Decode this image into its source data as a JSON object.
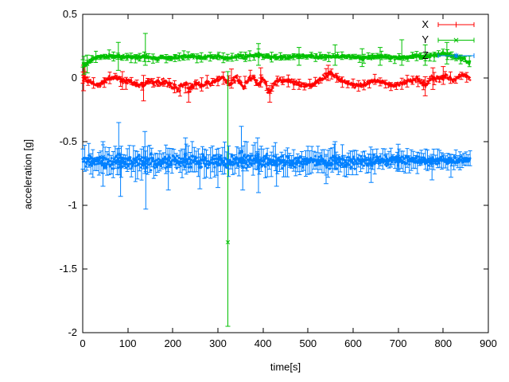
{
  "canvas": {
    "background": "#ffffff",
    "axis_color": "#000000",
    "text_color": "#000000"
  },
  "chart_data": {
    "type": "scatter",
    "style": "points-with-errorbars",
    "title": "",
    "xlabel": "time[s]",
    "ylabel": "acceleration [g]",
    "xlim": [
      0,
      900
    ],
    "ylim": [
      -2,
      0.5
    ],
    "t_range": [
      0,
      860
    ],
    "grid": false,
    "legend": {
      "position": "top-right-inside",
      "border": false,
      "entries": [
        "X",
        "Y",
        "Z"
      ]
    },
    "xticks": [
      {
        "v": 0,
        "label": "0"
      },
      {
        "v": 100,
        "label": "100"
      },
      {
        "v": 200,
        "label": "200"
      },
      {
        "v": 300,
        "label": "300"
      },
      {
        "v": 400,
        "label": "400"
      },
      {
        "v": 500,
        "label": "500"
      },
      {
        "v": 600,
        "label": "600"
      },
      {
        "v": 700,
        "label": "700"
      },
      {
        "v": 800,
        "label": "800"
      },
      {
        "v": 900,
        "label": "900"
      }
    ],
    "yticks": [
      {
        "v": 0.5,
        "label": "0.5"
      },
      {
        "v": 0,
        "label": "0"
      },
      {
        "v": -0.5,
        "label": "-0.5"
      },
      {
        "v": -1,
        "label": "-1"
      },
      {
        "v": -1.5,
        "label": "-1.5"
      },
      {
        "v": -2,
        "label": "-2"
      }
    ],
    "series": [
      {
        "name": "X",
        "color": "#ff0000",
        "marker": "+",
        "ebar_every": 16,
        "mean": [
          [
            0,
            0.0
          ],
          [
            8,
            -0.01
          ],
          [
            16,
            -0.03
          ],
          [
            26,
            -0.05
          ],
          [
            36,
            -0.055
          ],
          [
            46,
            -0.03
          ],
          [
            56,
            -0.01
          ],
          [
            66,
            0.0
          ],
          [
            76,
            0.005
          ],
          [
            86,
            -0.015
          ],
          [
            96,
            -0.03
          ],
          [
            106,
            -0.025
          ],
          [
            116,
            -0.045
          ],
          [
            126,
            -0.06
          ],
          [
            134,
            -0.05
          ],
          [
            142,
            -0.025
          ],
          [
            152,
            -0.02
          ],
          [
            162,
            -0.04
          ],
          [
            172,
            -0.03
          ],
          [
            182,
            -0.025
          ],
          [
            192,
            -0.05
          ],
          [
            202,
            -0.075
          ],
          [
            212,
            -0.09
          ],
          [
            222,
            -0.06
          ],
          [
            230,
            -0.05
          ],
          [
            236,
            -0.105
          ],
          [
            244,
            -0.06
          ],
          [
            252,
            -0.045
          ],
          [
            260,
            -0.055
          ],
          [
            268,
            -0.05
          ],
          [
            276,
            -0.035
          ],
          [
            284,
            -0.045
          ],
          [
            294,
            -0.025
          ],
          [
            302,
            -0.01
          ],
          [
            310,
            0.0
          ],
          [
            318,
            -0.03
          ],
          [
            326,
            -0.05
          ],
          [
            334,
            -0.015
          ],
          [
            342,
            0.005
          ],
          [
            350,
            -0.04
          ],
          [
            356,
            -0.075
          ],
          [
            364,
            -0.03
          ],
          [
            372,
            0.005
          ],
          [
            380,
            -0.005
          ],
          [
            386,
            -0.04
          ],
          [
            392,
            -0.06
          ],
          [
            398,
            0.0
          ],
          [
            404,
            -0.02
          ],
          [
            410,
            -0.095
          ],
          [
            416,
            -0.115
          ],
          [
            424,
            -0.05
          ],
          [
            432,
            -0.02
          ],
          [
            442,
            -0.02
          ],
          [
            452,
            -0.03
          ],
          [
            462,
            -0.02
          ],
          [
            472,
            -0.04
          ],
          [
            482,
            -0.05
          ],
          [
            492,
            -0.06
          ],
          [
            502,
            -0.06
          ],
          [
            512,
            -0.05
          ],
          [
            522,
            -0.03
          ],
          [
            532,
            0.0
          ],
          [
            542,
            0.025
          ],
          [
            550,
            0.04
          ],
          [
            558,
            0.025
          ],
          [
            566,
            0.0
          ],
          [
            576,
            -0.025
          ],
          [
            586,
            -0.04
          ],
          [
            596,
            -0.05
          ],
          [
            606,
            -0.06
          ],
          [
            616,
            -0.06
          ],
          [
            626,
            -0.05
          ],
          [
            636,
            -0.03
          ],
          [
            646,
            -0.02
          ],
          [
            656,
            -0.02
          ],
          [
            666,
            -0.03
          ],
          [
            676,
            -0.05
          ],
          [
            686,
            -0.06
          ],
          [
            696,
            -0.055
          ],
          [
            706,
            -0.05
          ],
          [
            716,
            -0.03
          ],
          [
            726,
            -0.02
          ],
          [
            736,
            -0.015
          ],
          [
            746,
            -0.02
          ],
          [
            754,
            -0.04
          ],
          [
            762,
            -0.06
          ],
          [
            768,
            -0.02
          ],
          [
            774,
            0.005
          ],
          [
            782,
            -0.005
          ],
          [
            790,
            -0.01
          ],
          [
            798,
            0.005
          ],
          [
            806,
            0.015
          ],
          [
            814,
            0.0
          ],
          [
            822,
            -0.015
          ],
          [
            830,
            -0.005
          ],
          [
            838,
            0.015
          ],
          [
            846,
            0.025
          ],
          [
            852,
            0.015
          ],
          [
            860,
            -0.005
          ]
        ],
        "spread": [
          [
            0,
            0.018
          ],
          [
            100,
            0.02
          ],
          [
            200,
            0.024
          ],
          [
            300,
            0.02
          ],
          [
            400,
            0.022
          ],
          [
            500,
            0.018
          ],
          [
            600,
            0.018
          ],
          [
            700,
            0.018
          ],
          [
            780,
            0.022
          ],
          [
            860,
            0.015
          ]
        ],
        "outliers": [
          {
            "t": 2,
            "y": 0.02,
            "lo": -0.1,
            "hi": 0.1
          },
          {
            "t": 5,
            "y": 0.05,
            "lo": -0.03,
            "hi": 0.12
          },
          {
            "t": 88,
            "y": -0.02,
            "lo": -0.09,
            "hi": 0.05
          },
          {
            "t": 135,
            "y": -0.05,
            "lo": -0.18,
            "hi": 0.02
          },
          {
            "t": 235,
            "y": -0.11,
            "lo": -0.19,
            "hi": -0.04
          },
          {
            "t": 330,
            "y": 0.0,
            "lo": -0.08,
            "hi": 0.07
          },
          {
            "t": 395,
            "y": 0.0,
            "lo": -0.07,
            "hi": 0.08
          },
          {
            "t": 415,
            "y": -0.12,
            "lo": -0.19,
            "hi": -0.06
          },
          {
            "t": 545,
            "y": 0.04,
            "lo": -0.02,
            "hi": 0.1
          },
          {
            "t": 760,
            "y": -0.06,
            "lo": -0.14,
            "hi": 0.01
          },
          {
            "t": 777,
            "y": 0.0,
            "lo": -0.09,
            "hi": 0.08
          },
          {
            "t": 800,
            "y": 0.02,
            "lo": -0.05,
            "hi": 0.09
          }
        ]
      },
      {
        "name": "Y",
        "color": "#00c000",
        "marker": "x",
        "ebar_every": 13,
        "mean": [
          [
            0,
            0.09
          ],
          [
            6,
            0.1
          ],
          [
            14,
            0.13
          ],
          [
            22,
            0.15
          ],
          [
            32,
            0.16
          ],
          [
            45,
            0.165
          ],
          [
            60,
            0.17
          ],
          [
            80,
            0.17
          ],
          [
            100,
            0.165
          ],
          [
            120,
            0.16
          ],
          [
            140,
            0.17
          ],
          [
            160,
            0.155
          ],
          [
            180,
            0.16
          ],
          [
            200,
            0.16
          ],
          [
            220,
            0.165
          ],
          [
            240,
            0.17
          ],
          [
            260,
            0.16
          ],
          [
            280,
            0.17
          ],
          [
            300,
            0.17
          ],
          [
            315,
            0.155
          ],
          [
            330,
            0.16
          ],
          [
            345,
            0.17
          ],
          [
            360,
            0.165
          ],
          [
            375,
            0.175
          ],
          [
            390,
            0.18
          ],
          [
            405,
            0.17
          ],
          [
            425,
            0.165
          ],
          [
            445,
            0.16
          ],
          [
            465,
            0.165
          ],
          [
            485,
            0.17
          ],
          [
            505,
            0.17
          ],
          [
            525,
            0.165
          ],
          [
            545,
            0.165
          ],
          [
            565,
            0.17
          ],
          [
            585,
            0.17
          ],
          [
            605,
            0.16
          ],
          [
            625,
            0.16
          ],
          [
            645,
            0.165
          ],
          [
            665,
            0.17
          ],
          [
            685,
            0.16
          ],
          [
            705,
            0.16
          ],
          [
            725,
            0.165
          ],
          [
            745,
            0.17
          ],
          [
            760,
            0.165
          ],
          [
            775,
            0.175
          ],
          [
            790,
            0.19
          ],
          [
            800,
            0.195
          ],
          [
            810,
            0.185
          ],
          [
            820,
            0.17
          ],
          [
            832,
            0.16
          ],
          [
            842,
            0.15
          ],
          [
            852,
            0.135
          ],
          [
            860,
            0.12
          ]
        ],
        "spread": [
          [
            0,
            0.02
          ],
          [
            50,
            0.016
          ],
          [
            200,
            0.015
          ],
          [
            400,
            0.016
          ],
          [
            600,
            0.014
          ],
          [
            760,
            0.016
          ],
          [
            860,
            0.018
          ]
        ],
        "outliers": [
          {
            "t": 3,
            "y": 0.1,
            "lo": 0.03,
            "hi": 0.17
          },
          {
            "t": 10,
            "y": 0.11,
            "lo": 0.04,
            "hi": 0.18
          },
          {
            "t": 79,
            "y": 0.17,
            "lo": 0.06,
            "hi": 0.28
          },
          {
            "t": 139,
            "y": 0.17,
            "lo": 0.1,
            "hi": 0.35
          },
          {
            "t": 322,
            "y": -1.29,
            "lo": -1.95,
            "hi": 0.05
          },
          {
            "t": 390,
            "y": 0.18,
            "lo": 0.1,
            "hi": 0.27
          },
          {
            "t": 480,
            "y": 0.17,
            "lo": 0.1,
            "hi": 0.24
          },
          {
            "t": 560,
            "y": 0.17,
            "lo": 0.1,
            "hi": 0.26
          },
          {
            "t": 620,
            "y": 0.16,
            "lo": 0.09,
            "hi": 0.23
          },
          {
            "t": 660,
            "y": 0.17,
            "lo": 0.1,
            "hi": 0.24
          },
          {
            "t": 708,
            "y": 0.16,
            "lo": 0.1,
            "hi": 0.3
          },
          {
            "t": 760,
            "y": 0.165,
            "lo": 0.1,
            "hi": 0.26
          },
          {
            "t": 808,
            "y": 0.19,
            "lo": 0.11,
            "hi": 0.28
          }
        ]
      },
      {
        "name": "Z",
        "color": "#0080ff",
        "marker": "*",
        "ebar_every": 6,
        "mean": [
          [
            0,
            -0.655
          ],
          [
            25,
            -0.66
          ],
          [
            55,
            -0.658
          ],
          [
            85,
            -0.655
          ],
          [
            115,
            -0.66
          ],
          [
            145,
            -0.66
          ],
          [
            175,
            -0.663
          ],
          [
            205,
            -0.66
          ],
          [
            235,
            -0.655
          ],
          [
            265,
            -0.66
          ],
          [
            295,
            -0.66
          ],
          [
            325,
            -0.655
          ],
          [
            355,
            -0.648
          ],
          [
            385,
            -0.648
          ],
          [
            415,
            -0.655
          ],
          [
            445,
            -0.66
          ],
          [
            475,
            -0.658
          ],
          [
            505,
            -0.655
          ],
          [
            535,
            -0.658
          ],
          [
            565,
            -0.66
          ],
          [
            595,
            -0.663
          ],
          [
            625,
            -0.658
          ],
          [
            655,
            -0.653
          ],
          [
            685,
            -0.65
          ],
          [
            715,
            -0.648
          ],
          [
            745,
            -0.648
          ],
          [
            775,
            -0.648
          ],
          [
            805,
            -0.647
          ],
          [
            835,
            -0.645
          ],
          [
            860,
            -0.645
          ]
        ],
        "spread": [
          [
            0,
            0.042
          ],
          [
            60,
            0.05
          ],
          [
            150,
            0.05
          ],
          [
            250,
            0.05
          ],
          [
            350,
            0.05
          ],
          [
            450,
            0.047
          ],
          [
            550,
            0.043
          ],
          [
            650,
            0.038
          ],
          [
            750,
            0.034
          ],
          [
            860,
            0.028
          ]
        ],
        "outliers": [
          {
            "t": 45,
            "y": -0.62,
            "lo": -0.85,
            "hi": -0.5
          },
          {
            "t": 80,
            "y": -0.6,
            "lo": -0.7,
            "hi": -0.35
          },
          {
            "t": 84,
            "y": -0.7,
            "lo": -0.93,
            "hi": -0.6
          },
          {
            "t": 138,
            "y": -0.63,
            "lo": -0.75,
            "hi": -0.42
          },
          {
            "t": 140,
            "y": -0.7,
            "lo": -1.03,
            "hi": -0.62
          },
          {
            "t": 190,
            "y": -0.68,
            "lo": -0.88,
            "hi": -0.6
          },
          {
            "t": 228,
            "y": -0.6,
            "lo": -0.7,
            "hi": -0.47
          },
          {
            "t": 260,
            "y": -0.7,
            "lo": -0.87,
            "hi": -0.62
          },
          {
            "t": 300,
            "y": -0.68,
            "lo": -0.86,
            "hi": -0.6
          },
          {
            "t": 352,
            "y": -0.58,
            "lo": -0.7,
            "hi": -0.38
          },
          {
            "t": 355,
            "y": -0.7,
            "lo": -0.88,
            "hi": -0.62
          },
          {
            "t": 388,
            "y": -0.6,
            "lo": -0.72,
            "hi": -0.47
          },
          {
            "t": 390,
            "y": -0.7,
            "lo": -0.9,
            "hi": -0.62
          },
          {
            "t": 430,
            "y": -0.68,
            "lo": -0.85,
            "hi": -0.6
          },
          {
            "t": 540,
            "y": -0.68,
            "lo": -0.83,
            "hi": -0.6
          },
          {
            "t": 560,
            "y": -0.62,
            "lo": -0.72,
            "hi": -0.5
          },
          {
            "t": 640,
            "y": -0.68,
            "lo": -0.82,
            "hi": -0.6
          },
          {
            "t": 700,
            "y": -0.62,
            "lo": -0.72,
            "hi": -0.52
          },
          {
            "t": 775,
            "y": -0.67,
            "lo": -0.8,
            "hi": -0.6
          },
          {
            "t": 817,
            "y": -0.66,
            "lo": -0.78,
            "hi": -0.6
          }
        ]
      }
    ]
  }
}
